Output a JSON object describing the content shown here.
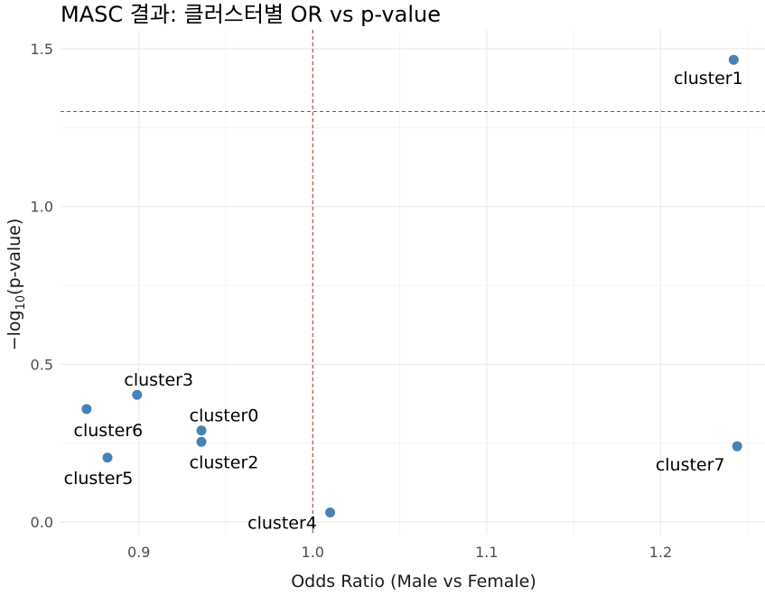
{
  "chart_data": {
    "type": "scatter",
    "title": "MASC 결과: 클러스터별 OR vs p-value",
    "xlabel": "Odds Ratio (Male vs Female)",
    "ylabel": "−log10(p-value)",
    "xlim": [
      0.855,
      1.26
    ],
    "ylim": [
      -0.04,
      1.56
    ],
    "x_ticks": [
      0.9,
      1.0,
      1.1,
      1.2
    ],
    "x_tick_labels": [
      "0.9",
      "1.0",
      "1.1",
      "1.2"
    ],
    "y_ticks": [
      0.0,
      0.5,
      1.0,
      1.5
    ],
    "y_tick_labels": [
      "0.0",
      "0.5",
      "1.0",
      "1.5"
    ],
    "reference_lines": {
      "x": 1.0,
      "y": 1.301
    },
    "point_color": "#4682b4",
    "ref_line_color": "#b2413b",
    "grid": true,
    "points": [
      {
        "label": "cluster1",
        "x": 1.242,
        "y": 1.465
      },
      {
        "label": "cluster3",
        "x": 0.899,
        "y": 0.403
      },
      {
        "label": "cluster6",
        "x": 0.87,
        "y": 0.358
      },
      {
        "label": "cluster0",
        "x": 0.936,
        "y": 0.29
      },
      {
        "label": "cluster2",
        "x": 0.936,
        "y": 0.254
      },
      {
        "label": "cluster7",
        "x": 1.244,
        "y": 0.24
      },
      {
        "label": "cluster5",
        "x": 0.882,
        "y": 0.204
      },
      {
        "label": "cluster4",
        "x": 1.01,
        "y": 0.03
      }
    ]
  }
}
